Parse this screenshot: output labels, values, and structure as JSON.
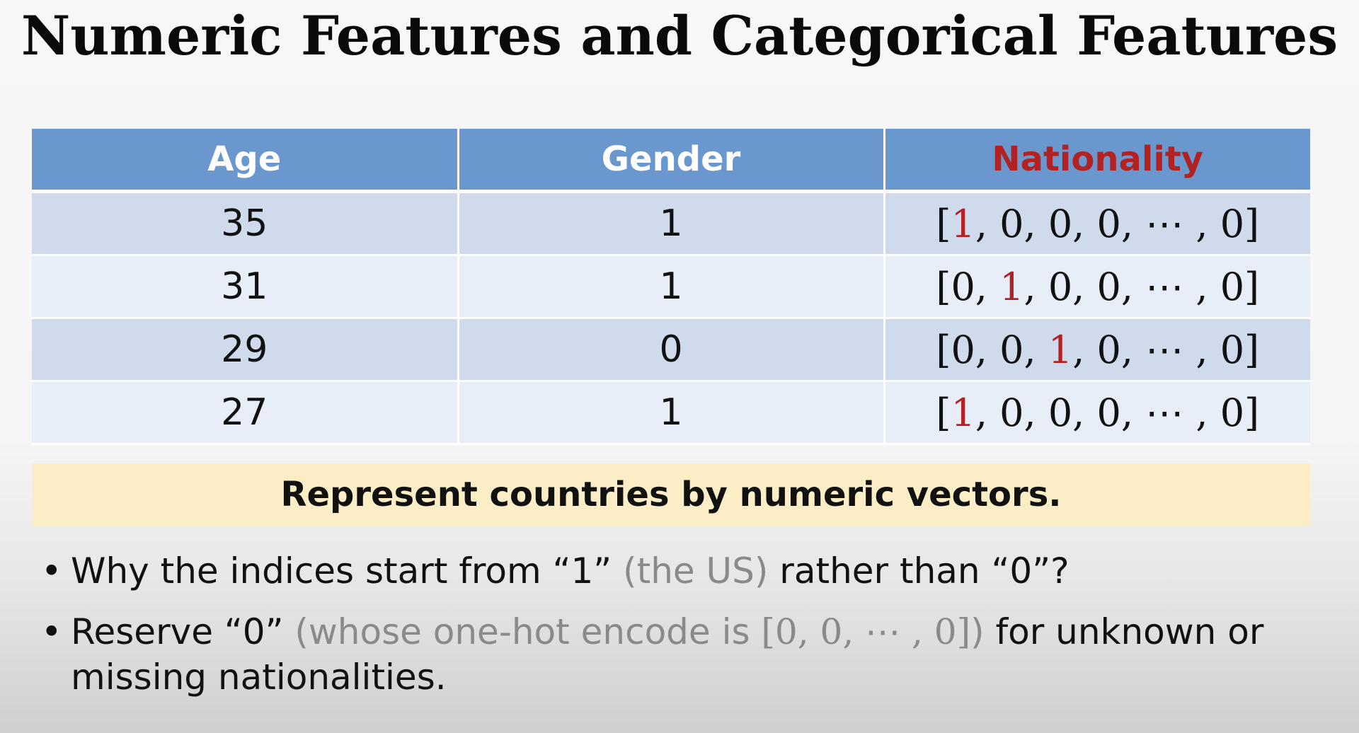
{
  "title": "Numeric Features and Categorical Features",
  "table": {
    "headers": [
      "Age",
      "Gender",
      "Nationality"
    ],
    "rows": [
      {
        "age": "35",
        "gender": "1",
        "nat_pre": "[",
        "nat_hot": "1",
        "nat_post": ", 0, 0, 0, ⋯ , 0]"
      },
      {
        "age": "31",
        "gender": "1",
        "nat_pre": "[0, ",
        "nat_hot": "1",
        "nat_post": ", 0, 0, ⋯ , 0]"
      },
      {
        "age": "29",
        "gender": "0",
        "nat_pre": "[0, 0, ",
        "nat_hot": "1",
        "nat_post": ", 0, ⋯ , 0]"
      },
      {
        "age": "27",
        "gender": "1",
        "nat_pre": "[",
        "nat_hot": "1",
        "nat_post": ", 0, 0, 0, ⋯ , 0]"
      }
    ]
  },
  "highlight": "Represent countries by numeric vectors.",
  "bullets": {
    "marker": "•",
    "b1_a": "Why the indices start from “1” ",
    "b1_gray": "(the US)",
    "b1_b": " rather than “0”?",
    "b2_a": "Reserve “0” ",
    "b2_gray1": "(whose one-hot encode is ",
    "b2_vec": "[0, 0, ⋯ , 0]",
    "b2_gray2": ")",
    "b2_b": " for unknown or missing nationalities."
  },
  "colors": {
    "header_bg": "#6b97cf",
    "row_dark": "#cfdbed",
    "row_light": "#e8eef7",
    "accent_red": "#b22222",
    "highlight_bg": "#fbeec6",
    "gray_text": "#8a8a8a"
  }
}
